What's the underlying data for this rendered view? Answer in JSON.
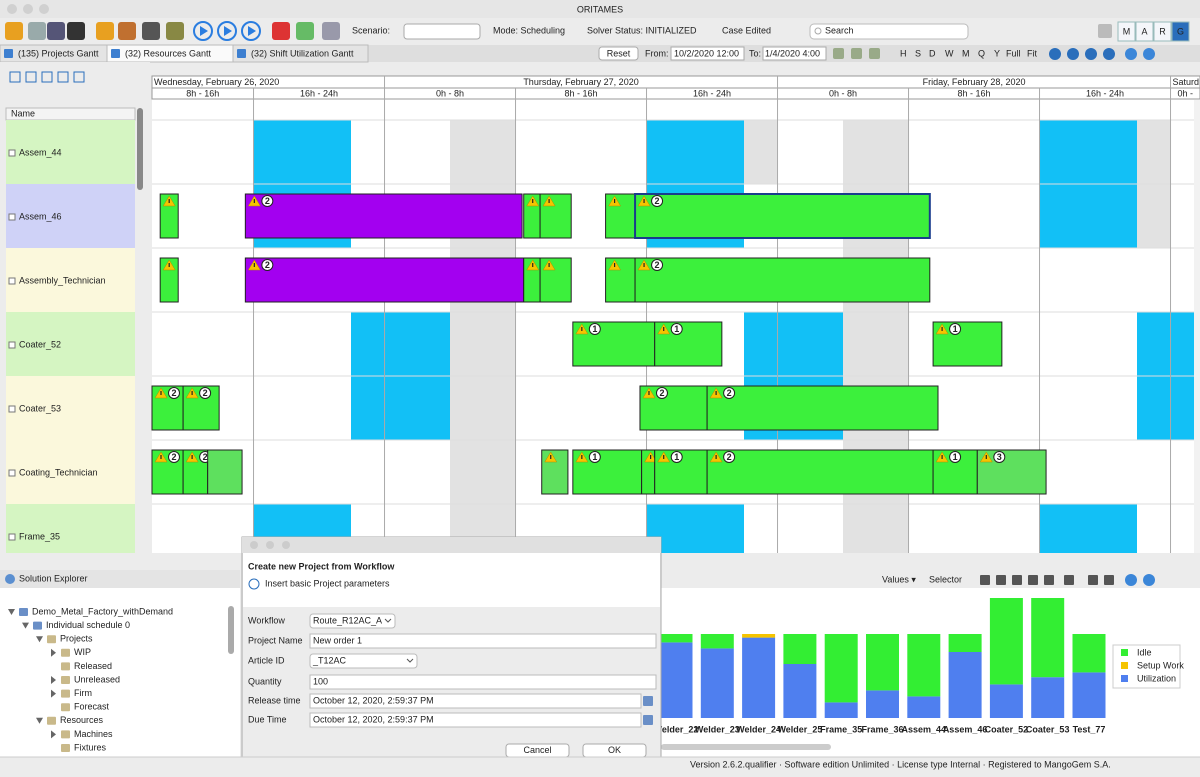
{
  "window": {
    "title": "ORITAMES"
  },
  "toolbar": {
    "scenario_label": "Scenario:",
    "mode": "Mode: Scheduling",
    "solver_status": "Solver Status: INITIALIZED",
    "case_status": "Case Edited",
    "search_placeholder": "Search",
    "logo": [
      "M",
      "A",
      "R",
      "G"
    ]
  },
  "tabs": [
    "(135) Projects Gantt",
    "(32) Resources Gantt",
    "(32) Shift Utilization Gantt"
  ],
  "range_bar": {
    "reset": "Reset",
    "from_label": "From:",
    "from": "10/2/2020 12:00",
    "to_label": "To:",
    "to": "1/4/2020 4:00",
    "zoom": [
      "H",
      "S",
      "D",
      "W",
      "M",
      "Q",
      "Y",
      "Full",
      "Fit"
    ]
  },
  "gantt": {
    "name_header": "Name",
    "xlim": [
      9.8,
      73.8
    ],
    "days": [
      {
        "label": "Wednesday, February 26, 2020",
        "start": 0
      },
      {
        "label": "Thursday, February 27, 2020",
        "start": 24
      },
      {
        "label": "Friday, February 28, 2020",
        "start": 48
      },
      {
        "label": "Saturd",
        "start": 72
      }
    ],
    "shifts": [
      {
        "label": "8h - 16h",
        "start": 8
      },
      {
        "label": "16h - 24h",
        "start": 16
      },
      {
        "label": "0h - 8h",
        "start": 24
      },
      {
        "label": "8h - 16h",
        "start": 32
      },
      {
        "label": "16h - 24h",
        "start": 40
      },
      {
        "label": "0h - 8h",
        "start": 48
      },
      {
        "label": "8h - 16h",
        "start": 56
      },
      {
        "label": "16h - 24h",
        "start": 64
      },
      {
        "label": "0h -",
        "start": 72
      }
    ],
    "rows": [
      {
        "name": "Assem_44",
        "color": "#d5f5c2"
      },
      {
        "name": "Assem_46",
        "color": "#cfd2f7",
        "tasks": [
          {
            "start": 10.3,
            "end": 11.4,
            "color": "#3cf03c"
          },
          {
            "start": 15.5,
            "end": 32.4,
            "color": "#a300f0",
            "count": 2
          },
          {
            "start": 32.5,
            "end": 33.5,
            "color": "#3cf03c"
          },
          {
            "start": 33.5,
            "end": 35.4,
            "color": "#3cf03c"
          },
          {
            "start": 37.5,
            "end": 39.3,
            "color": "#3cf03c"
          },
          {
            "start": 39.3,
            "end": 57.3,
            "color": "#3cf03c",
            "count": 2,
            "selected": true
          }
        ]
      },
      {
        "name": "Assembly_Technician",
        "color": "#fbf8dc",
        "tasks": [
          {
            "start": 10.3,
            "end": 11.4,
            "color": "#3cf03c"
          },
          {
            "start": 15.5,
            "end": 32.5,
            "color": "#a300f0",
            "count": 2
          },
          {
            "start": 32.5,
            "end": 33.5,
            "color": "#3cf03c"
          },
          {
            "start": 33.5,
            "end": 35.4,
            "color": "#3cf03c"
          },
          {
            "start": 37.5,
            "end": 39.3,
            "color": "#3cf03c"
          },
          {
            "start": 39.3,
            "end": 57.3,
            "color": "#3cf03c",
            "count": 2
          }
        ]
      },
      {
        "name": "Coater_52",
        "color": "#d5f5c2",
        "tasks": [
          {
            "start": 35.5,
            "end": 40.5,
            "color": "#3cf03c",
            "count": 1
          },
          {
            "start": 40.5,
            "end": 44.6,
            "color": "#3cf03c",
            "count": 1
          },
          {
            "start": 57.5,
            "end": 61.7,
            "color": "#3cf03c",
            "count": 1
          }
        ]
      },
      {
        "name": "Coater_53",
        "color": "#fbf8dc",
        "tasks": [
          {
            "start": 9.8,
            "end": 11.7,
            "color": "#3cf03c",
            "count": 2
          },
          {
            "start": 11.7,
            "end": 13.9,
            "color": "#3cf03c",
            "count": 2
          },
          {
            "start": 39.6,
            "end": 43.7,
            "color": "#3cf03c",
            "count": 2
          },
          {
            "start": 43.7,
            "end": 57.8,
            "color": "#3cf03c",
            "count": 2
          }
        ]
      },
      {
        "name": "Coating_Technician",
        "color": "#fbf8dc",
        "tasks": [
          {
            "start": 9.8,
            "end": 11.7,
            "color": "#3cf03c",
            "count": 2
          },
          {
            "start": 11.7,
            "end": 13.2,
            "color": "#3cf03c",
            "count": 2
          },
          {
            "start": 13.2,
            "end": 15.3,
            "color": "#5ee05e",
            "warning": false
          },
          {
            "start": 33.6,
            "end": 35.2,
            "color": "#5ee05e"
          },
          {
            "start": 35.5,
            "end": 39.7,
            "color": "#3cf03c",
            "count": 1
          },
          {
            "start": 39.7,
            "end": 40.5,
            "color": "#3cf03c"
          },
          {
            "start": 40.5,
            "end": 43.7,
            "color": "#3cf03c",
            "count": 1
          },
          {
            "start": 43.7,
            "end": 57.5,
            "color": "#3cf03c",
            "count": 2
          },
          {
            "start": 57.5,
            "end": 60.2,
            "color": "#3cf03c",
            "count": 1
          },
          {
            "start": 60.2,
            "end": 64.4,
            "color": "#5ee05e",
            "count": 3
          }
        ]
      },
      {
        "name": "Frame_35",
        "color": "#d5f5c2"
      }
    ]
  },
  "solution_explorer": {
    "title": "Solution Explorer",
    "tree": [
      {
        "label": "Demo_Metal_Factory_withDemand",
        "children": [
          {
            "label": "Individual schedule 0",
            "children": [
              {
                "label": "Projects",
                "children": [
                  {
                    "label": "WIP",
                    "expandable": true
                  },
                  {
                    "label": "Released"
                  },
                  {
                    "label": "Unreleased",
                    "expandable": true
                  },
                  {
                    "label": "Firm",
                    "expandable": true
                  },
                  {
                    "label": "Forecast"
                  }
                ]
              },
              {
                "label": "Resources",
                "children": [
                  {
                    "label": "Machines",
                    "expandable": true
                  },
                  {
                    "label": "Fixtures"
                  }
                ]
              }
            ]
          }
        ]
      }
    ]
  },
  "dialog": {
    "title": "Create new Project from Workflow",
    "subtitle": "Insert basic Project parameters",
    "fields": [
      {
        "label": "Workflow",
        "value": "Route_R12AC_A"
      },
      {
        "label": "Project Name",
        "value": "New order 1"
      },
      {
        "label": "Article ID",
        "value": "_T12AC"
      },
      {
        "label": "Quantity",
        "value": "100"
      },
      {
        "label": "Release time",
        "value": "October 12, 2020, 2:59:37 PM"
      },
      {
        "label": "Due Time",
        "value": "October 12, 2020, 2:59:37 PM"
      }
    ],
    "buttons": [
      "Cancel",
      "OK"
    ]
  },
  "chart_panel": {
    "values_menu": "Values ▾",
    "selector": "Selector"
  },
  "chart_data": {
    "type": "bar",
    "stacked": true,
    "categories": [
      "Welder_22",
      "Welder_23",
      "Welder_24",
      "Welder_25",
      "Frame_35",
      "Frame_36",
      "Assem_44",
      "Assem_46",
      "Coater_52",
      "Coater_53",
      "Test_77"
    ],
    "series": [
      {
        "name": "Idle",
        "color": "#33ee33",
        "values": [
          7,
          12,
          0,
          25,
          57,
          47,
          52,
          15,
          72,
          66,
          32
        ]
      },
      {
        "name": "Setup Work",
        "color": "#f5c400",
        "values": [
          0,
          0,
          3,
          0,
          0,
          0,
          0,
          0,
          0,
          0,
          0
        ]
      },
      {
        "name": "Utilization",
        "color": "#4f7fef",
        "values": [
          63,
          58,
          67,
          45,
          13,
          23,
          18,
          55,
          28,
          34,
          38
        ]
      }
    ],
    "ylim": [
      0,
      100
    ],
    "legend": "right"
  },
  "status_bar": "Version 2.6.2.qualifier · Software edition Unlimited · License type Internal · Registered to MangoGem S.A."
}
